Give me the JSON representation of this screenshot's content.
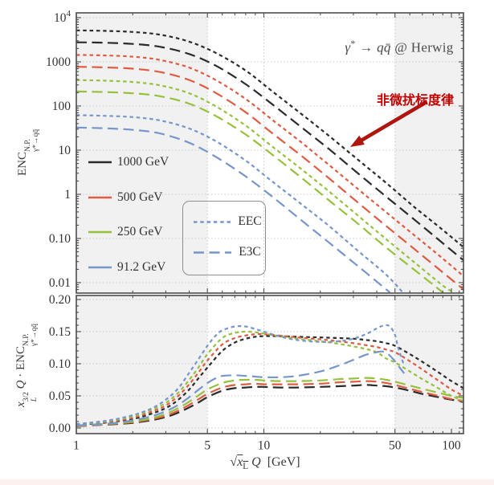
{
  "title": {
    "full": "γ* → qq̄ @ Herwig",
    "gamma": "γ",
    "star": "*",
    "arrow": "→",
    "quarks": "qq̄",
    "at": "@ Herwig"
  },
  "annotation": {
    "text": "非微扰标度律",
    "color": "#c00000",
    "arrow_color": "#b01510"
  },
  "legend": {
    "energies": [
      {
        "label": "1000 GeV",
        "color": "#2b2b2b"
      },
      {
        "label": "500 GeV",
        "color": "#df5c43"
      },
      {
        "label": "250 GeV",
        "color": "#95c13d"
      },
      {
        "label": "91.2 GeV",
        "color": "#7696cc"
      }
    ],
    "styles": [
      {
        "label": "EEC",
        "dash": "4.5 3.8"
      },
      {
        "label": "E3C",
        "dash": "13 6.5"
      }
    ],
    "style_swatch_color": "#7696cc"
  },
  "axes": {
    "x": {
      "label_var": "Q",
      "label_units": "[GeV]",
      "radical": "√",
      "radicand": "x",
      "radicand_sub": "L",
      "tick_labels": [
        "1",
        "5",
        "10",
        "50",
        "100"
      ],
      "tick_values": [
        1,
        5,
        10,
        50,
        100
      ],
      "minor_ticks": [
        2,
        3,
        4,
        6,
        7,
        8,
        9,
        20,
        30,
        40,
        60,
        70,
        80,
        90,
        110
      ],
      "grid_values": [
        5,
        10,
        50
      ],
      "shaded_bands": [
        [
          1,
          5
        ],
        [
          50,
          116
        ]
      ],
      "range": [
        1,
        116
      ],
      "scale": "log"
    },
    "y_top": {
      "tick_labels": [
        "10^4",
        "1000",
        "100",
        "10",
        "1",
        "0.10",
        "0.01"
      ],
      "tick_values": [
        10000,
        1000,
        100,
        10,
        1,
        0.1,
        0.01
      ],
      "range": [
        0.0058,
        12850
      ],
      "scale": "log"
    },
    "y_bottom": {
      "tick_labels": [
        "0.00",
        "0.05",
        "0.10",
        "0.15",
        "0.20"
      ],
      "tick_values": [
        0,
        0.05,
        0.1,
        0.15,
        0.2
      ],
      "range": [
        -0.0087,
        0.206
      ],
      "scale": "linear"
    }
  },
  "chart_data": [
    {
      "type": "line",
      "panel": "top",
      "title": "γ* → qq̄ @ Herwig",
      "xscale": "log",
      "yscale": "log",
      "xlim": [
        1,
        116
      ],
      "ylim": [
        0.0058,
        12850
      ],
      "ylabel": "ENC^{N.P.}_{γ*→qq̄}",
      "grid": true,
      "legend_position": "lower-left",
      "ylabel_parts": {
        "base": "ENC",
        "sup": "N.P.",
        "sub": "γ*→qq̄"
      },
      "series": [
        {
          "name": "EEC 1000 GeV",
          "color": "#2b2b2b",
          "style": "dashed",
          "x": [
            1,
            1.4,
            2,
            2.8,
            4,
            5.6,
            8,
            11,
            16,
            22,
            32,
            45,
            64,
            90,
            116
          ],
          "y": [
            5150,
            5030,
            4740,
            4110,
            2860,
            1560,
            634,
            221,
            64,
            21.9,
            5.9,
            1.8,
            0.5,
            0.156,
            0.063
          ]
        },
        {
          "name": "E3C 1000 GeV",
          "color": "#2b2b2b",
          "style": "longdash",
          "x": [
            1,
            1.4,
            2,
            2.8,
            4,
            5.6,
            8,
            11,
            16,
            22,
            32,
            45,
            64,
            90,
            116
          ],
          "y": [
            2770,
            2710,
            2540,
            2190,
            1500,
            800,
            311,
            112,
            32,
            11,
            2.9,
            0.88,
            0.26,
            0.078,
            0.032
          ]
        },
        {
          "name": "EEC 500 GeV",
          "color": "#df5c43",
          "style": "dashed",
          "x": [
            1,
            1.4,
            2,
            2.8,
            4,
            5.6,
            8,
            11,
            16,
            22,
            32,
            45,
            64,
            90,
            116
          ],
          "y": [
            1430,
            1400,
            1310,
            1100,
            740,
            377,
            144,
            50,
            14.5,
            4.8,
            1.28,
            0.39,
            0.115,
            0.035,
            0.014
          ]
        },
        {
          "name": "E3C 500 GeV",
          "color": "#df5c43",
          "style": "longdash",
          "x": [
            1,
            1.4,
            2,
            2.8,
            4,
            5.6,
            8,
            11,
            16,
            22,
            32,
            45,
            64,
            90,
            116
          ],
          "y": [
            770,
            750,
            700,
            587,
            388,
            193,
            72,
            24.8,
            7.2,
            2.4,
            0.63,
            0.19,
            0.056,
            0.017,
            0.007
          ]
        },
        {
          "name": "EEC 250 GeV",
          "color": "#95c13d",
          "style": "dashed",
          "x": [
            1,
            1.4,
            2,
            2.8,
            4,
            5.6,
            8,
            11,
            16,
            22,
            32,
            45,
            64,
            90,
            103
          ],
          "y": [
            385,
            375,
            349,
            293,
            194,
            96,
            36,
            12.4,
            3.6,
            1.21,
            0.32,
            0.096,
            0.028,
            0.0086,
            0.006
          ]
        },
        {
          "name": "E3C 250 GeV",
          "color": "#95c13d",
          "style": "longdash",
          "x": [
            1,
            1.4,
            2,
            2.8,
            4,
            5.6,
            8,
            11,
            16,
            22,
            32,
            45,
            64,
            90
          ],
          "y": [
            213,
            207,
            194,
            166,
            113,
            58,
            22.6,
            8.1,
            2.3,
            0.76,
            0.21,
            0.062,
            0.019,
            0.006
          ]
        },
        {
          "name": "EEC 91.2 GeV",
          "color": "#7696cc",
          "style": "dashed",
          "x": [
            1,
            1.4,
            2,
            2.8,
            4,
            5.6,
            8,
            11,
            16,
            22,
            32,
            45,
            55
          ],
          "y": [
            62,
            60,
            56,
            47,
            31,
            15.6,
            5.8,
            2.0,
            0.58,
            0.2,
            0.051,
            0.015,
            0.006
          ]
        },
        {
          "name": "E3C 91.2 GeV",
          "color": "#7696cc",
          "style": "longdash",
          "x": [
            1,
            1.4,
            2,
            2.8,
            4,
            5.6,
            8,
            11,
            16,
            22,
            32,
            47
          ],
          "y": [
            32.5,
            31.4,
            28.8,
            23.9,
            14.7,
            6.9,
            2.54,
            0.91,
            0.25,
            0.084,
            0.023,
            0.006
          ]
        }
      ]
    },
    {
      "type": "line",
      "panel": "bottom",
      "xscale": "log",
      "yscale": "linear",
      "xlim": [
        1,
        116
      ],
      "ylim": [
        -0.0087,
        0.206
      ],
      "xlabel": "√x̄L Q  [GeV]",
      "ylabel": "x_L^{3/2} Q · ENC^{N.P.}_{γ*→qq̄}",
      "grid": true,
      "ylabel_parts": {
        "x": "x",
        "xsup": "3/2",
        "xsub": "L",
        "q": "Q",
        "dot": "·",
        "base": "ENC",
        "sup": "N.P.",
        "sub": "γ*→qq̄"
      },
      "series": [
        {
          "name": "EEC 1000 GeV",
          "color": "#2b2b2b",
          "style": "dashed",
          "x": [
            1,
            1.5,
            2,
            2.5,
            3,
            3.5,
            4,
            4.5,
            5,
            6,
            7,
            8,
            9,
            10,
            12,
            15,
            20,
            25,
            30,
            35,
            40,
            45,
            50,
            60,
            70,
            85,
            100,
            116
          ],
          "y": [
            0.0045,
            0.009,
            0.014,
            0.022,
            0.031,
            0.044,
            0.06,
            0.078,
            0.094,
            0.12,
            0.133,
            0.139,
            0.142,
            0.143,
            0.143,
            0.142,
            0.141,
            0.14,
            0.139,
            0.137,
            0.135,
            0.132,
            0.128,
            0.115,
            0.103,
            0.087,
            0.073,
            0.062
          ]
        },
        {
          "name": "E3C 1000 GeV",
          "color": "#2b2b2b",
          "style": "longdash",
          "x": [
            1,
            1.5,
            2,
            2.5,
            3,
            3.5,
            4,
            4.5,
            5,
            6,
            7,
            8,
            9,
            10,
            12,
            15,
            20,
            25,
            30,
            35,
            40,
            45,
            50,
            60,
            70,
            85,
            100,
            116
          ],
          "y": [
            0.0028,
            0.0055,
            0.008,
            0.012,
            0.017,
            0.024,
            0.032,
            0.04,
            0.048,
            0.058,
            0.062,
            0.063,
            0.064,
            0.064,
            0.063,
            0.063,
            0.064,
            0.065,
            0.066,
            0.067,
            0.066,
            0.065,
            0.063,
            0.058,
            0.053,
            0.048,
            0.044,
            0.041
          ]
        },
        {
          "name": "EEC 500 GeV",
          "color": "#df5c43",
          "style": "dashed",
          "x": [
            1,
            1.5,
            2,
            2.5,
            3,
            3.5,
            4,
            4.5,
            5,
            6,
            7,
            8,
            9,
            10,
            12,
            15,
            20,
            25,
            30,
            35,
            40,
            45,
            50,
            60,
            70,
            85,
            100,
            116
          ],
          "y": [
            0.005,
            0.01,
            0.016,
            0.025,
            0.035,
            0.05,
            0.068,
            0.087,
            0.105,
            0.13,
            0.14,
            0.144,
            0.146,
            0.146,
            0.144,
            0.141,
            0.138,
            0.135,
            0.132,
            0.129,
            0.126,
            0.122,
            0.118,
            0.104,
            0.091,
            0.074,
            0.06,
            0.05
          ]
        },
        {
          "name": "E3C 500 GeV",
          "color": "#df5c43",
          "style": "longdash",
          "x": [
            1,
            1.5,
            2,
            2.5,
            3,
            3.5,
            4,
            4.5,
            5,
            6,
            7,
            8,
            9,
            10,
            12,
            15,
            20,
            25,
            30,
            35,
            40,
            45,
            50,
            60,
            70,
            85,
            100,
            116
          ],
          "y": [
            0.003,
            0.006,
            0.009,
            0.0135,
            0.019,
            0.027,
            0.036,
            0.045,
            0.053,
            0.063,
            0.067,
            0.068,
            0.069,
            0.068,
            0.068,
            0.068,
            0.069,
            0.071,
            0.072,
            0.073,
            0.072,
            0.07,
            0.067,
            0.061,
            0.056,
            0.05,
            0.045,
            0.042
          ]
        },
        {
          "name": "EEC 250 GeV",
          "color": "#95c13d",
          "style": "dashed",
          "x": [
            1,
            1.5,
            2,
            2.5,
            3,
            3.5,
            4,
            4.5,
            5,
            6,
            7,
            8,
            9,
            10,
            12,
            15,
            20,
            25,
            30,
            35,
            40,
            45,
            50,
            60,
            70,
            85,
            100,
            116
          ],
          "y": [
            0.0055,
            0.011,
            0.018,
            0.028,
            0.039,
            0.055,
            0.075,
            0.095,
            0.115,
            0.14,
            0.148,
            0.15,
            0.149,
            0.147,
            0.143,
            0.139,
            0.135,
            0.131,
            0.127,
            0.123,
            0.118,
            0.108,
            0.102,
            0.088,
            0.076,
            0.062,
            0.05,
            0.042
          ]
        },
        {
          "name": "E3C 250 GeV",
          "color": "#95c13d",
          "style": "longdash",
          "x": [
            1,
            1.5,
            2,
            2.5,
            3,
            3.5,
            4,
            4.5,
            5,
            6,
            7,
            8,
            9,
            10,
            12,
            15,
            20,
            25,
            30,
            35,
            40,
            45,
            50,
            60,
            70,
            85,
            100,
            116
          ],
          "y": [
            0.0035,
            0.0065,
            0.01,
            0.015,
            0.022,
            0.031,
            0.041,
            0.051,
            0.06,
            0.07,
            0.074,
            0.075,
            0.075,
            0.074,
            0.073,
            0.073,
            0.074,
            0.076,
            0.077,
            0.078,
            0.077,
            0.075,
            0.072,
            0.066,
            0.061,
            0.055,
            0.05,
            0.047
          ]
        },
        {
          "name": "EEC 91.2 GeV",
          "color": "#7696cc",
          "style": "dashed",
          "x": [
            1,
            1.5,
            2,
            2.5,
            3,
            3.5,
            4,
            4.5,
            5,
            5.5,
            6,
            7,
            8,
            9,
            10,
            12,
            15,
            20,
            25,
            30,
            35,
            40,
            44,
            47,
            50,
            52,
            56
          ],
          "y": [
            0.006,
            0.012,
            0.02,
            0.03,
            0.044,
            0.062,
            0.086,
            0.108,
            0.128,
            0.143,
            0.152,
            0.158,
            0.158,
            0.154,
            0.15,
            0.143,
            0.137,
            0.134,
            0.135,
            0.139,
            0.146,
            0.155,
            0.16,
            0.158,
            0.145,
            0.125,
            0.097
          ]
        },
        {
          "name": "E3C 91.2 GeV",
          "color": "#7696cc",
          "style": "longdash",
          "x": [
            1,
            1.5,
            2,
            2.5,
            3,
            3.5,
            4,
            4.5,
            5,
            5.5,
            6,
            7,
            8,
            9,
            10,
            12,
            15,
            20,
            25,
            30,
            35,
            40,
            43,
            46,
            50,
            53,
            56
          ],
          "y": [
            0.004,
            0.007,
            0.012,
            0.018,
            0.026,
            0.036,
            0.048,
            0.06,
            0.07,
            0.077,
            0.081,
            0.082,
            0.081,
            0.08,
            0.079,
            0.079,
            0.081,
            0.088,
            0.097,
            0.106,
            0.114,
            0.118,
            0.119,
            0.115,
            0.104,
            0.094,
            0.085
          ]
        }
      ]
    }
  ],
  "style": {
    "frame_color": "#4d4d4d",
    "grid_color": "#c9c9c9",
    "band_color": "#f1f1f1",
    "tick_text_color": "#333333",
    "title_color": "#4a4a4a"
  }
}
